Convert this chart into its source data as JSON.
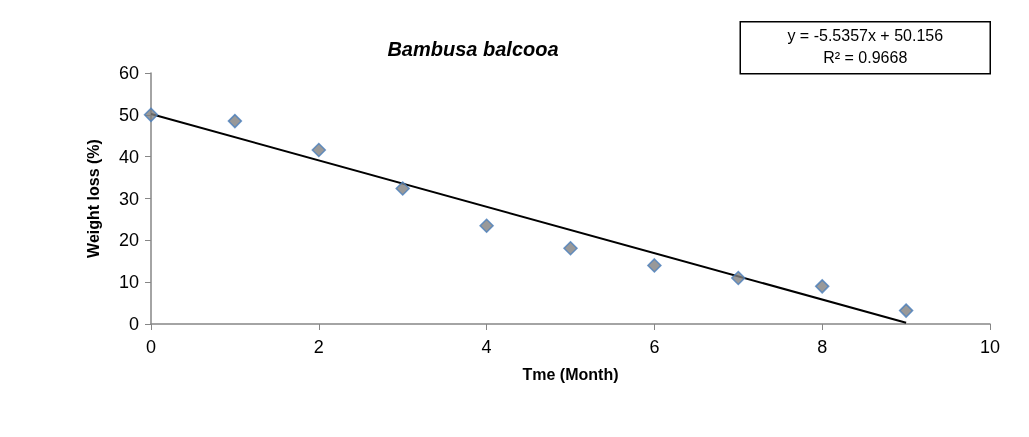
{
  "chart_data": {
    "type": "scatter",
    "title": "Bambusa balcooa",
    "xlabel": "Tme (Month)",
    "ylabel": "Weight loss (%)",
    "annotations": [
      "y = -5.5357x + 50.156",
      "R² = 0.9668"
    ],
    "series": [
      {
        "color": "#7f7f7f",
        "marker": "diamond",
        "x": [
          0,
          1,
          2,
          3,
          4,
          5,
          6,
          7,
          8,
          9
        ],
        "values": [
          50.0,
          48.5,
          41.6,
          32.4,
          23.5,
          18.1,
          14.0,
          11.0,
          9.0,
          3.2
        ]
      },
      {
        "type": "line",
        "color": "#000000",
        "marker": "none",
        "line_style": "solid",
        "x": [
          0,
          9
        ],
        "values": [
          50.2,
          0.3
        ]
      }
    ],
    "xlim": [
      0,
      10
    ],
    "xticks": [
      0,
      2,
      4,
      6,
      8,
      10
    ],
    "ylim": [
      0,
      60
    ],
    "yticks": [
      0,
      10,
      20,
      30,
      40,
      50,
      60
    ],
    "grid": false
  }
}
